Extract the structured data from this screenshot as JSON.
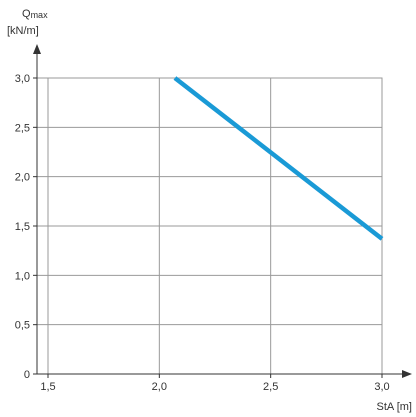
{
  "chart_data": {
    "type": "line",
    "ylabel_main": "Q",
    "ylabel_sub": "max",
    "ylabel_unit": "[kN/m]",
    "xlabel": "StA [m]",
    "xlim": [
      1.5,
      3.0
    ],
    "ylim": [
      0,
      3.0
    ],
    "xticks": [
      "1,5",
      "2,0",
      "2,5",
      "3,0"
    ],
    "yticks": [
      "0",
      "0,5",
      "1,0",
      "1,5",
      "2,0",
      "2,5",
      "3,0"
    ],
    "xtick_values": [
      1.5,
      2.0,
      2.5,
      3.0
    ],
    "ytick_values": [
      0,
      0.5,
      1.0,
      1.5,
      2.0,
      2.5,
      3.0
    ],
    "grid": true,
    "series": [
      {
        "x": [
          2.07,
          3.0
        ],
        "y": [
          3.0,
          1.37
        ],
        "color": "#1a9ad6"
      }
    ]
  }
}
